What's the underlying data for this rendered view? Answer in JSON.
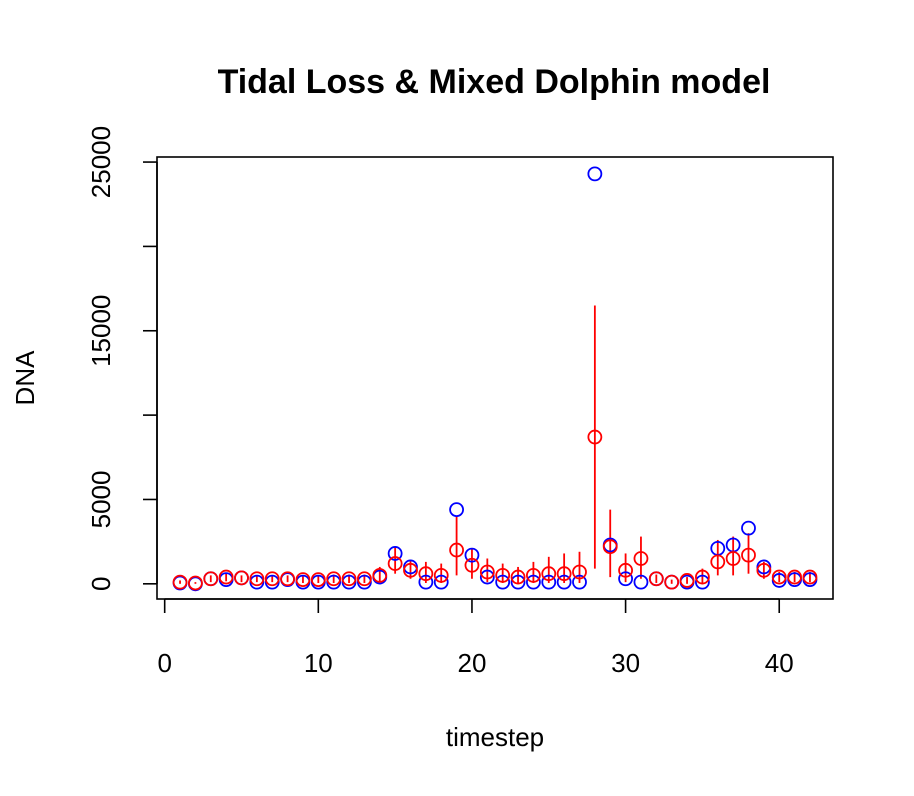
{
  "chart_data": {
    "type": "scatter",
    "title": "Tidal Loss & Mixed Dolphin model",
    "xlabel": "timestep",
    "ylabel": "DNA",
    "xlim": [
      -0.5,
      43.5
    ],
    "ylim": [
      -900,
      25300
    ],
    "xticks": [
      0,
      10,
      20,
      30,
      40
    ],
    "yticks": [
      0,
      5000,
      10000,
      15000,
      20000,
      25000
    ],
    "ytick_labels": [
      "0",
      "5000",
      "",
      "15000",
      "",
      "25000"
    ],
    "grid": false,
    "colors": {
      "observed": "#0000ff",
      "model": "#ff0000",
      "axes": "#000000"
    },
    "series": [
      {
        "marker": "open-circle",
        "color": "#0000ff",
        "x": [
          1,
          2,
          3,
          4,
          5,
          6,
          7,
          8,
          9,
          10,
          11,
          12,
          13,
          14,
          15,
          16,
          17,
          18,
          19,
          20,
          21,
          22,
          23,
          24,
          25,
          26,
          27,
          28,
          29,
          30,
          31,
          32,
          33,
          34,
          35,
          36,
          37,
          38,
          39,
          40,
          41,
          42
        ],
        "y": [
          50,
          0,
          300,
          250,
          350,
          100,
          100,
          250,
          100,
          100,
          100,
          100,
          100,
          400,
          1800,
          1000,
          100,
          100,
          4400,
          1700,
          400,
          100,
          100,
          100,
          100,
          100,
          100,
          24300,
          2300,
          300,
          100,
          300,
          100,
          100,
          100,
          2100,
          2300,
          3300,
          1000,
          200,
          250,
          250
        ]
      },
      {
        "marker": "open-circle",
        "color": "#ff0000",
        "x": [
          1,
          2,
          3,
          4,
          5,
          6,
          7,
          8,
          9,
          10,
          11,
          12,
          13,
          14,
          15,
          16,
          17,
          18,
          19,
          20,
          21,
          22,
          23,
          24,
          25,
          26,
          27,
          28,
          29,
          30,
          31,
          32,
          33,
          34,
          35,
          36,
          37,
          38,
          39,
          40,
          41,
          42
        ],
        "y": [
          100,
          50,
          300,
          400,
          350,
          300,
          300,
          300,
          250,
          250,
          300,
          300,
          300,
          500,
          1200,
          800,
          600,
          500,
          2000,
          1100,
          700,
          500,
          400,
          500,
          600,
          600,
          700,
          8700,
          2200,
          800,
          1500,
          300,
          100,
          200,
          400,
          1300,
          1500,
          1700,
          800,
          400,
          400,
          400
        ],
        "err_low": [
          0,
          0,
          100,
          150,
          100,
          100,
          100,
          100,
          50,
          50,
          50,
          50,
          50,
          100,
          600,
          300,
          50,
          50,
          500,
          300,
          100,
          50,
          50,
          50,
          50,
          50,
          50,
          900,
          400,
          100,
          300,
          50,
          0,
          0,
          50,
          500,
          500,
          600,
          300,
          100,
          100,
          100
        ],
        "err_high": [
          200,
          100,
          500,
          600,
          500,
          500,
          500,
          500,
          450,
          450,
          550,
          550,
          550,
          1000,
          2200,
          1400,
          1300,
          1200,
          4000,
          2100,
          1500,
          1200,
          1000,
          1300,
          1600,
          1800,
          1900,
          16500,
          4400,
          1800,
          2800,
          550,
          250,
          400,
          900,
          2600,
          2800,
          3000,
          1300,
          700,
          700,
          700
        ]
      }
    ]
  }
}
